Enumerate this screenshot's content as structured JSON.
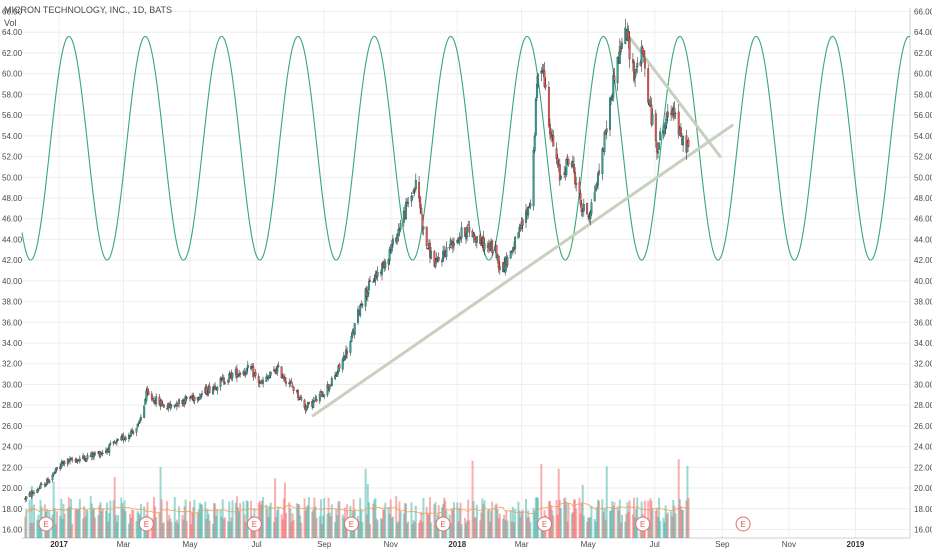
{
  "chart_data": {
    "type": "candlestick",
    "title": "MICRON TECHNOLOGY, INC., 1D, BATS",
    "indicator_label": "Vol",
    "y_ticks": [
      "16.00",
      "18.00",
      "20.00",
      "22.00",
      "24.00",
      "26.00",
      "28.00",
      "30.00",
      "32.00",
      "34.00",
      "36.00",
      "38.00",
      "40.00",
      "42.00",
      "44.00",
      "46.00",
      "48.00",
      "50.00",
      "52.00",
      "54.00",
      "56.00",
      "58.00",
      "60.00",
      "62.00",
      "64.00",
      "66.00"
    ],
    "ylim": [
      16,
      66
    ],
    "x_labels": [
      {
        "date": "2017-01",
        "label": "2017",
        "year": true
      },
      {
        "date": "2017-03",
        "label": "Mar",
        "year": false
      },
      {
        "date": "2017-05",
        "label": "May",
        "year": false
      },
      {
        "date": "2017-07",
        "label": "Jul",
        "year": false
      },
      {
        "date": "2017-09",
        "label": "Sep",
        "year": false
      },
      {
        "date": "2017-11",
        "label": "Nov",
        "year": false
      },
      {
        "date": "2018-01",
        "label": "2018",
        "year": true
      },
      {
        "date": "2018-03",
        "label": "Mar",
        "year": false
      },
      {
        "date": "2018-05",
        "label": "May",
        "year": false
      },
      {
        "date": "2018-07",
        "label": "Jul",
        "year": false
      },
      {
        "date": "2018-09",
        "label": "Sep",
        "year": false
      },
      {
        "date": "2018-11",
        "label": "Nov",
        "year": false
      },
      {
        "date": "2019-01",
        "label": "2019",
        "year": true
      }
    ],
    "price_path": [
      [
        "2016-12-01",
        19.0
      ],
      [
        "2016-12-20",
        20.5
      ],
      [
        "2017-01-05",
        22.5
      ],
      [
        "2017-01-20",
        22.8
      ],
      [
        "2017-02-10",
        23.5
      ],
      [
        "2017-02-25",
        24.5
      ],
      [
        "2017-03-15",
        26.0
      ],
      [
        "2017-03-22",
        29.0
      ],
      [
        "2017-04-10",
        27.8
      ],
      [
        "2017-04-25",
        28.5
      ],
      [
        "2017-05-10",
        29.0
      ],
      [
        "2017-05-25",
        30.0
      ],
      [
        "2017-06-10",
        31.0
      ],
      [
        "2017-06-25",
        31.5
      ],
      [
        "2017-07-05",
        30.0
      ],
      [
        "2017-07-20",
        31.5
      ],
      [
        "2017-08-05",
        29.5
      ],
      [
        "2017-08-15",
        27.8
      ],
      [
        "2017-08-25",
        28.5
      ],
      [
        "2017-09-10",
        30.5
      ],
      [
        "2017-09-25",
        34.0
      ],
      [
        "2017-10-05",
        38.0
      ],
      [
        "2017-10-15",
        40.0
      ],
      [
        "2017-10-25",
        41.5
      ],
      [
        "2017-11-05",
        44.0
      ],
      [
        "2017-11-15",
        47.0
      ],
      [
        "2017-11-25",
        49.5
      ],
      [
        "2017-12-02",
        44.0
      ],
      [
        "2017-12-12",
        41.5
      ],
      [
        "2017-12-25",
        43.5
      ],
      [
        "2018-01-10",
        45.0
      ],
      [
        "2018-01-25",
        43.5
      ],
      [
        "2018-02-05",
        43.0
      ],
      [
        "2018-02-10",
        41.0
      ],
      [
        "2018-02-25",
        44.0
      ],
      [
        "2018-03-10",
        48.0
      ],
      [
        "2018-03-15",
        59.0
      ],
      [
        "2018-03-20",
        61.0
      ],
      [
        "2018-03-28",
        54.0
      ],
      [
        "2018-04-05",
        50.0
      ],
      [
        "2018-04-15",
        52.0
      ],
      [
        "2018-04-25",
        47.0
      ],
      [
        "2018-05-02",
        46.5
      ],
      [
        "2018-05-10",
        50.0
      ],
      [
        "2018-05-18",
        55.0
      ],
      [
        "2018-05-25",
        60.0
      ],
      [
        "2018-06-01",
        63.0
      ],
      [
        "2018-06-05",
        64.0
      ],
      [
        "2018-06-12",
        60.0
      ],
      [
        "2018-06-20",
        62.0
      ],
      [
        "2018-06-26",
        57.0
      ],
      [
        "2018-07-03",
        53.0
      ],
      [
        "2018-07-10",
        55.0
      ],
      [
        "2018-07-18",
        57.0
      ],
      [
        "2018-07-25",
        53.5
      ],
      [
        "2018-08-01",
        53.0
      ]
    ],
    "volume_bars": "Volume histogram drawn along chart bottom with moving average line",
    "trendlines": [
      {
        "from": [
          "2017-08-22",
          27.0
        ],
        "to": [
          "2018-09-10",
          55.0
        ]
      },
      {
        "from": [
          "2018-06-08",
          63.5
        ],
        "to": [
          "2018-08-30",
          52.0
        ]
      }
    ],
    "sine_overlay": {
      "min": 42.0,
      "max": 63.6,
      "period_days": 70,
      "first_peak": "2017-01-10"
    },
    "earnings_dates": [
      "2016-12-20",
      "2017-03-22",
      "2017-06-29",
      "2017-09-26",
      "2017-12-19",
      "2018-03-22",
      "2018-06-20",
      "2018-09-20"
    ],
    "earnings_label": "E",
    "x_range": [
      "2016-11-28",
      "2019-02-20"
    ],
    "colors": {
      "up": "#26a69a",
      "down": "#ef5350",
      "sine": "#3aa67a",
      "trend": "#c8d0c0",
      "vol_ma": "#f0a060",
      "grid": "#eeeeee"
    }
  }
}
